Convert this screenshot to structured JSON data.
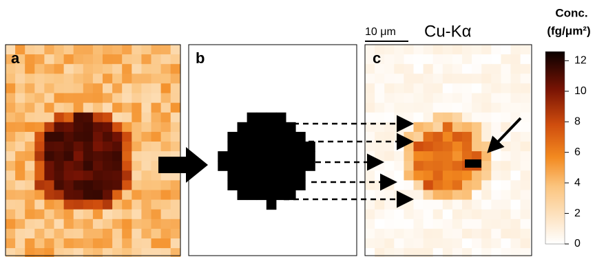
{
  "panels": [
    {
      "label": "a"
    },
    {
      "label": "b"
    },
    {
      "label": "c"
    }
  ],
  "scale_bar": "10 μm",
  "element": "Cu-Kα",
  "colorbar": {
    "title": [
      "Conc.",
      "(fg/μm²)"
    ],
    "range": [
      0,
      12.6
    ],
    "ticks": [
      0,
      2,
      4,
      6,
      8,
      10,
      12
    ]
  }
}
